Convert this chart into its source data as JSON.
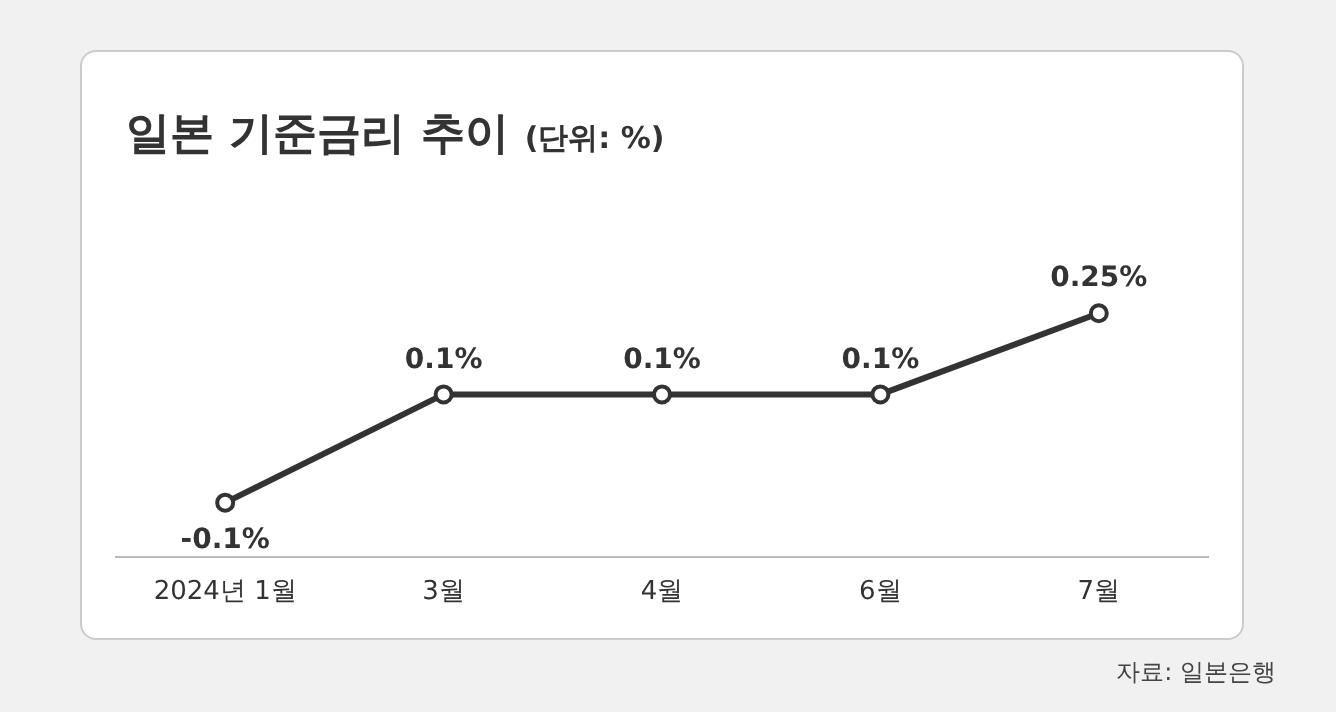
{
  "chart_data": {
    "type": "line",
    "title": "일본 기준금리 추이",
    "subtitle": "(단위: %)",
    "categories": [
      "2024년 1월",
      "3월",
      "4월",
      "6월",
      "7월"
    ],
    "series": [
      {
        "color": "#333333",
        "values": [
          -0.1,
          0.1,
          0.1,
          0.1,
          0.25
        ],
        "value_labels": [
          "-0.1%",
          "0.1%",
          "0.1%",
          "0.1%",
          "0.25%"
        ]
      }
    ],
    "marker": "circle",
    "line_style": "solid",
    "grid": false,
    "legend": false,
    "tick_labels": "x",
    "annotations": [
      "자료: 일본은행"
    ]
  }
}
